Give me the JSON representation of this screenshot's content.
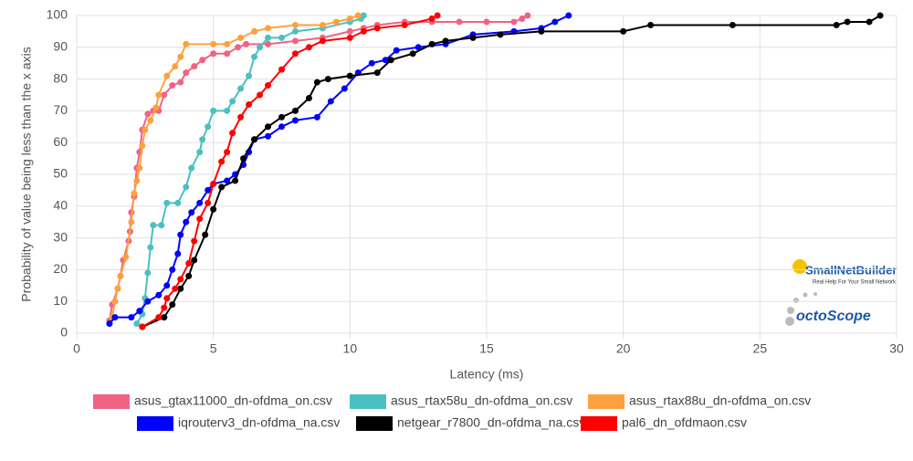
{
  "chart_data": {
    "type": "line",
    "xlabel": "Latency (ms)",
    "ylabel": "Probability of value being less than the x axis",
    "xlim": [
      0,
      30
    ],
    "xticks": [
      0,
      5,
      10,
      15,
      20,
      25,
      30
    ],
    "ylim": [
      0,
      100
    ],
    "yticks": [
      0,
      10,
      20,
      30,
      40,
      50,
      60,
      70,
      80,
      90,
      100
    ],
    "grid": true,
    "legend": "bottom",
    "series": [
      {
        "name": "asus_gtax11000_dn-ofdma_on.csv",
        "color": "#f06384",
        "x": [
          1.2,
          1.3,
          1.5,
          1.6,
          1.7,
          1.9,
          1.95,
          2.0,
          2.1,
          2.2,
          2.3,
          2.4,
          2.6,
          2.8,
          3.0,
          3.2,
          3.5,
          3.8,
          4.0,
          4.3,
          4.6,
          5,
          5.5,
          5.9,
          6.2,
          7,
          8,
          9,
          10,
          10.5,
          11,
          12,
          13,
          14,
          15,
          16,
          16.3,
          16.5
        ],
        "values": [
          4,
          9,
          14,
          18,
          23,
          29,
          32,
          38,
          43,
          52,
          57,
          64,
          69,
          70,
          70,
          75,
          78,
          79,
          82,
          84,
          86,
          88,
          88,
          90,
          91,
          91,
          92,
          93,
          95,
          96,
          97,
          98,
          98,
          98,
          98,
          98,
          99,
          100
        ]
      },
      {
        "name": "asus_rtax58u_dn-ofdma_on.csv",
        "color": "#4bc0c0",
        "x": [
          2.2,
          2.4,
          2.5,
          2.6,
          2.7,
          2.8,
          3.1,
          3.3,
          3.7,
          4.0,
          4.2,
          4.5,
          4.6,
          4.8,
          5.0,
          5.5,
          5.7,
          6.0,
          6.3,
          6.5,
          6.7,
          7.0,
          7.5,
          8,
          9,
          10,
          10.4,
          10.5
        ],
        "values": [
          3,
          6,
          11,
          19,
          27,
          34,
          34,
          41,
          41,
          46,
          52,
          57,
          61,
          65,
          70,
          70,
          73,
          77,
          81,
          87,
          90,
          93,
          93,
          95,
          96,
          98,
          99,
          100
        ]
      },
      {
        "name": "asus_rtax88u_dn-ofdma_on.csv",
        "color": "#ffa040",
        "x": [
          1.3,
          1.4,
          1.5,
          1.6,
          1.8,
          2.0,
          2.1,
          2.2,
          2.3,
          2.4,
          2.5,
          2.7,
          2.9,
          3.0,
          3.3,
          3.6,
          3.8,
          4.0,
          5,
          5.5,
          6,
          6.5,
          7,
          8,
          9,
          9.5,
          10,
          10.3
        ],
        "values": [
          5,
          10,
          14,
          18,
          24,
          35,
          44,
          48,
          52,
          59,
          64,
          67,
          71,
          75,
          81,
          84,
          87,
          91,
          91,
          91,
          93,
          95,
          96,
          97,
          97,
          98,
          99,
          100
        ]
      },
      {
        "name": "iqrouterv3_dn-ofdma_na.csv",
        "color": "#0000ff",
        "x": [
          1.2,
          1.4,
          2,
          2.3,
          2.6,
          3.0,
          3.3,
          3.5,
          3.7,
          3.8,
          4.0,
          4.2,
          4.5,
          4.8,
          5.0,
          5.5,
          5.8,
          6.1,
          6.3,
          6.5,
          7.0,
          7.5,
          8,
          8.8,
          9.3,
          9.8,
          10.3,
          10.8,
          11.3,
          11.7,
          12.5,
          13.5,
          14.5,
          16,
          17,
          17.5,
          18
        ],
        "values": [
          3,
          5,
          5,
          7,
          10,
          12,
          15,
          20,
          25,
          31,
          35,
          38,
          41,
          45,
          47,
          48,
          50,
          53,
          57,
          61,
          62,
          65,
          67,
          68,
          73,
          77,
          82,
          85,
          86,
          89,
          90,
          91,
          94,
          95,
          96,
          98,
          100
        ]
      },
      {
        "name": "netgear_r7800_dn-ofdma_na.csv",
        "color": "#000000",
        "x": [
          2.4,
          3.2,
          3.5,
          3.8,
          4.1,
          4.3,
          4.7,
          5.0,
          5.3,
          5.8,
          6.1,
          6.5,
          7,
          7.5,
          8.0,
          8.5,
          8.8,
          9.2,
          10,
          11,
          11.5,
          12.3,
          13,
          13.5,
          14.5,
          15.5,
          17,
          20,
          21,
          24,
          27.8,
          28.2,
          29,
          29.4
        ],
        "values": [
          2,
          5,
          9,
          14,
          18,
          23,
          31,
          39,
          46,
          48,
          55,
          61,
          65,
          68,
          70,
          74,
          79,
          80,
          81,
          82,
          86,
          88,
          91,
          92,
          93,
          94,
          95,
          95,
          97,
          97,
          97,
          98,
          98,
          100
        ]
      },
      {
        "name": "pal6_dn_ofdmaon.csv",
        "color": "#ff0000",
        "x": [
          2.4,
          3,
          3.2,
          3.3,
          3.6,
          3.8,
          4.1,
          4.3,
          4.5,
          4.8,
          5,
          5.3,
          5.5,
          5.7,
          6,
          6.3,
          6.7,
          7,
          7.5,
          8,
          8.5,
          9,
          10,
          10.5,
          11,
          12,
          13,
          13.2
        ],
        "values": [
          2,
          5,
          8,
          11,
          14,
          17,
          22,
          29,
          36,
          41,
          47,
          54,
          57,
          63,
          68,
          72,
          75,
          78,
          83,
          88,
          90,
          92,
          93,
          95,
          96,
          97,
          99,
          100
        ]
      }
    ]
  },
  "watermark": {
    "brand": "SmallNetBuilder",
    "tagline": "Real Help For Your Small Network",
    "partner": "octoScope"
  }
}
